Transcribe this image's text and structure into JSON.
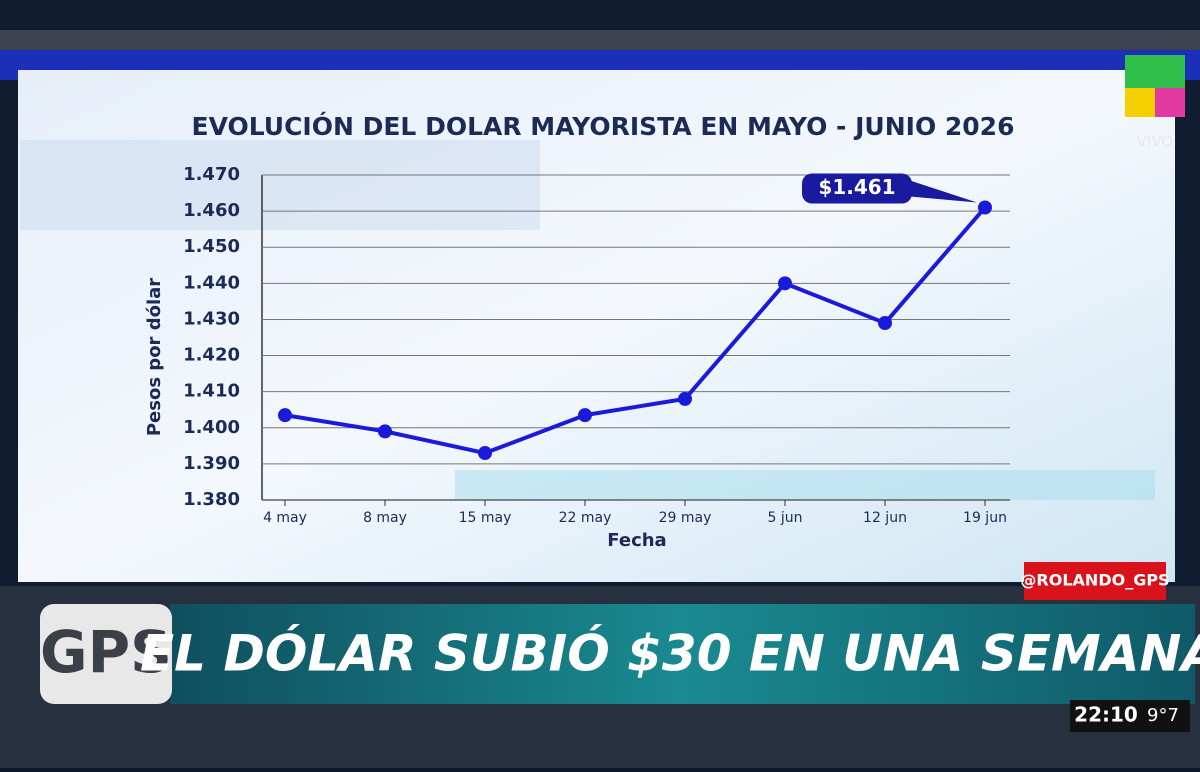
{
  "chart_data": {
    "type": "line",
    "title": "EVOLUCIÓN DEL DOLAR MAYORISTA EN MAYO - JUNIO 2026",
    "y_label": "Pesos por dólar",
    "x_label": "Fecha",
    "categories": [
      "4 may",
      "8 may",
      "15 may",
      "22 may",
      "29 may",
      "5 jun",
      "12 jun",
      "19 jun"
    ],
    "values": [
      1403.5,
      1399,
      1393,
      1403.5,
      1408,
      1440,
      1429,
      1461
    ],
    "value_labels": [
      null,
      null,
      null,
      null,
      null,
      null,
      null,
      "$1.461"
    ],
    "color": "#1a1adb",
    "ylim": [
      1380,
      1470
    ],
    "yticks": [
      {
        "value": 1380,
        "label": "1.380"
      },
      {
        "value": 1390,
        "label": "1.390"
      },
      {
        "value": 1400,
        "label": "1.400"
      },
      {
        "value": 1410,
        "label": "1.410"
      },
      {
        "value": 1420,
        "label": "1.420"
      },
      {
        "value": 1430,
        "label": "1.430"
      },
      {
        "value": 1440,
        "label": "1.440"
      },
      {
        "value": 1450,
        "label": "1.450"
      },
      {
        "value": 1460,
        "label": "1.460"
      },
      {
        "value": 1470,
        "label": "1.470"
      }
    ],
    "grid": true
  },
  "broadcast": {
    "live": "VIVO",
    "handle": "@ROLANDO_GPS",
    "logo": "GPS",
    "headline": "EL DÓLAR SUBIÓ $30 EN UNA SEMANA",
    "time": "22:10",
    "temperature": "9°7"
  }
}
